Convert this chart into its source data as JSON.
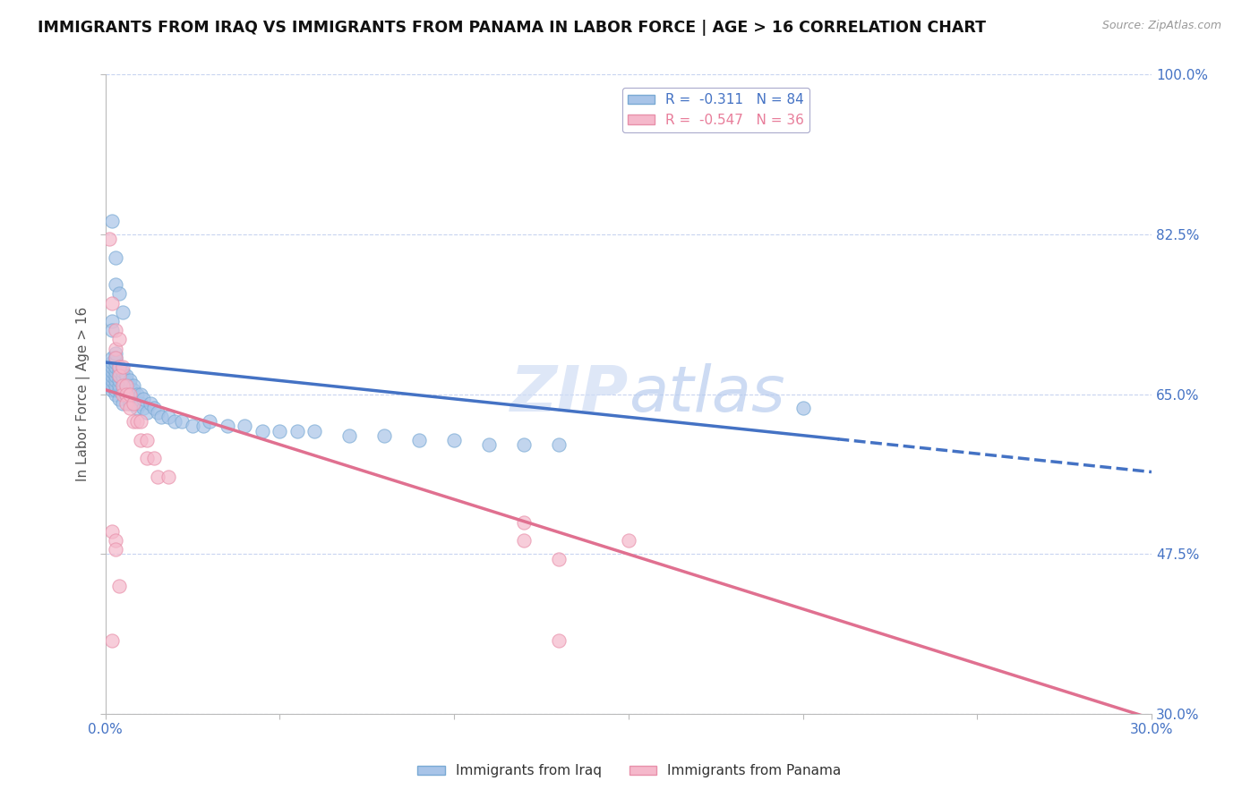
{
  "title": "IMMIGRANTS FROM IRAQ VS IMMIGRANTS FROM PANAMA IN LABOR FORCE | AGE > 16 CORRELATION CHART",
  "source": "Source: ZipAtlas.com",
  "xlabel": "",
  "ylabel": "In Labor Force | Age > 16",
  "xlim": [
    0.0,
    0.3
  ],
  "ylim": [
    0.3,
    1.0
  ],
  "xticks": [
    0.0,
    0.05,
    0.1,
    0.15,
    0.2,
    0.25,
    0.3
  ],
  "xticklabels": [
    "0.0%",
    "",
    "",
    "",
    "",
    "",
    "30.0%"
  ],
  "yticks": [
    0.3,
    0.475,
    0.65,
    0.825,
    1.0
  ],
  "yticklabels": [
    "30.0%",
    "47.5%",
    "65.0%",
    "82.5%",
    "100.0%"
  ],
  "iraq_color": "#a8c4e8",
  "iraq_edge_color": "#7aaad4",
  "panama_color": "#f5b8cb",
  "panama_edge_color": "#e890aa",
  "iraq_R": -0.311,
  "iraq_N": 84,
  "panama_R": -0.547,
  "panama_N": 36,
  "trend_line_color_iraq": "#4472c4",
  "trend_line_color_panama": "#e07090",
  "watermark": "ZIPatlas",
  "background_color": "#ffffff",
  "grid_color": "#c8d4f0",
  "iraq_trend_x0": 0.0,
  "iraq_trend_y0": 0.685,
  "iraq_trend_x1": 0.3,
  "iraq_trend_y1": 0.565,
  "panama_trend_x0": 0.0,
  "panama_trend_y0": 0.655,
  "panama_trend_x1": 0.3,
  "panama_trend_y1": 0.295,
  "iraq_scatter": [
    [
      0.001,
      0.66
    ],
    [
      0.001,
      0.665
    ],
    [
      0.001,
      0.67
    ],
    [
      0.001,
      0.675
    ],
    [
      0.001,
      0.68
    ],
    [
      0.002,
      0.655
    ],
    [
      0.002,
      0.66
    ],
    [
      0.002,
      0.665
    ],
    [
      0.002,
      0.67
    ],
    [
      0.002,
      0.675
    ],
    [
      0.002,
      0.68
    ],
    [
      0.002,
      0.685
    ],
    [
      0.002,
      0.69
    ],
    [
      0.003,
      0.65
    ],
    [
      0.003,
      0.655
    ],
    [
      0.003,
      0.66
    ],
    [
      0.003,
      0.665
    ],
    [
      0.003,
      0.67
    ],
    [
      0.003,
      0.675
    ],
    [
      0.003,
      0.68
    ],
    [
      0.003,
      0.685
    ],
    [
      0.003,
      0.69
    ],
    [
      0.003,
      0.695
    ],
    [
      0.004,
      0.645
    ],
    [
      0.004,
      0.655
    ],
    [
      0.004,
      0.66
    ],
    [
      0.004,
      0.665
    ],
    [
      0.004,
      0.67
    ],
    [
      0.004,
      0.675
    ],
    [
      0.004,
      0.68
    ],
    [
      0.005,
      0.64
    ],
    [
      0.005,
      0.655
    ],
    [
      0.005,
      0.665
    ],
    [
      0.005,
      0.67
    ],
    [
      0.005,
      0.675
    ],
    [
      0.006,
      0.65
    ],
    [
      0.006,
      0.66
    ],
    [
      0.006,
      0.665
    ],
    [
      0.006,
      0.67
    ],
    [
      0.007,
      0.64
    ],
    [
      0.007,
      0.65
    ],
    [
      0.007,
      0.66
    ],
    [
      0.007,
      0.665
    ],
    [
      0.008,
      0.64
    ],
    [
      0.008,
      0.655
    ],
    [
      0.008,
      0.66
    ],
    [
      0.009,
      0.635
    ],
    [
      0.009,
      0.65
    ],
    [
      0.01,
      0.64
    ],
    [
      0.01,
      0.65
    ],
    [
      0.011,
      0.635
    ],
    [
      0.011,
      0.645
    ],
    [
      0.012,
      0.63
    ],
    [
      0.013,
      0.64
    ],
    [
      0.014,
      0.635
    ],
    [
      0.015,
      0.63
    ],
    [
      0.016,
      0.625
    ],
    [
      0.018,
      0.625
    ],
    [
      0.02,
      0.62
    ],
    [
      0.022,
      0.62
    ],
    [
      0.025,
      0.615
    ],
    [
      0.028,
      0.615
    ],
    [
      0.03,
      0.62
    ],
    [
      0.035,
      0.615
    ],
    [
      0.04,
      0.615
    ],
    [
      0.045,
      0.61
    ],
    [
      0.05,
      0.61
    ],
    [
      0.055,
      0.61
    ],
    [
      0.06,
      0.61
    ],
    [
      0.07,
      0.605
    ],
    [
      0.08,
      0.605
    ],
    [
      0.09,
      0.6
    ],
    [
      0.1,
      0.6
    ],
    [
      0.11,
      0.595
    ],
    [
      0.12,
      0.595
    ],
    [
      0.13,
      0.595
    ],
    [
      0.002,
      0.84
    ],
    [
      0.003,
      0.8
    ],
    [
      0.2,
      0.635
    ],
    [
      0.002,
      0.73
    ],
    [
      0.003,
      0.77
    ],
    [
      0.004,
      0.76
    ],
    [
      0.002,
      0.72
    ],
    [
      0.005,
      0.74
    ]
  ],
  "panama_scatter": [
    [
      0.001,
      0.82
    ],
    [
      0.002,
      0.75
    ],
    [
      0.003,
      0.72
    ],
    [
      0.003,
      0.7
    ],
    [
      0.003,
      0.69
    ],
    [
      0.004,
      0.71
    ],
    [
      0.004,
      0.68
    ],
    [
      0.004,
      0.67
    ],
    [
      0.005,
      0.68
    ],
    [
      0.005,
      0.66
    ],
    [
      0.005,
      0.65
    ],
    [
      0.006,
      0.66
    ],
    [
      0.006,
      0.65
    ],
    [
      0.006,
      0.64
    ],
    [
      0.007,
      0.65
    ],
    [
      0.007,
      0.635
    ],
    [
      0.008,
      0.64
    ],
    [
      0.008,
      0.62
    ],
    [
      0.009,
      0.62
    ],
    [
      0.01,
      0.62
    ],
    [
      0.01,
      0.6
    ],
    [
      0.012,
      0.6
    ],
    [
      0.012,
      0.58
    ],
    [
      0.014,
      0.58
    ],
    [
      0.015,
      0.56
    ],
    [
      0.018,
      0.56
    ],
    [
      0.002,
      0.5
    ],
    [
      0.003,
      0.49
    ],
    [
      0.003,
      0.48
    ],
    [
      0.004,
      0.44
    ],
    [
      0.002,
      0.38
    ],
    [
      0.12,
      0.49
    ],
    [
      0.13,
      0.47
    ],
    [
      0.15,
      0.49
    ],
    [
      0.13,
      0.38
    ],
    [
      0.12,
      0.51
    ]
  ]
}
